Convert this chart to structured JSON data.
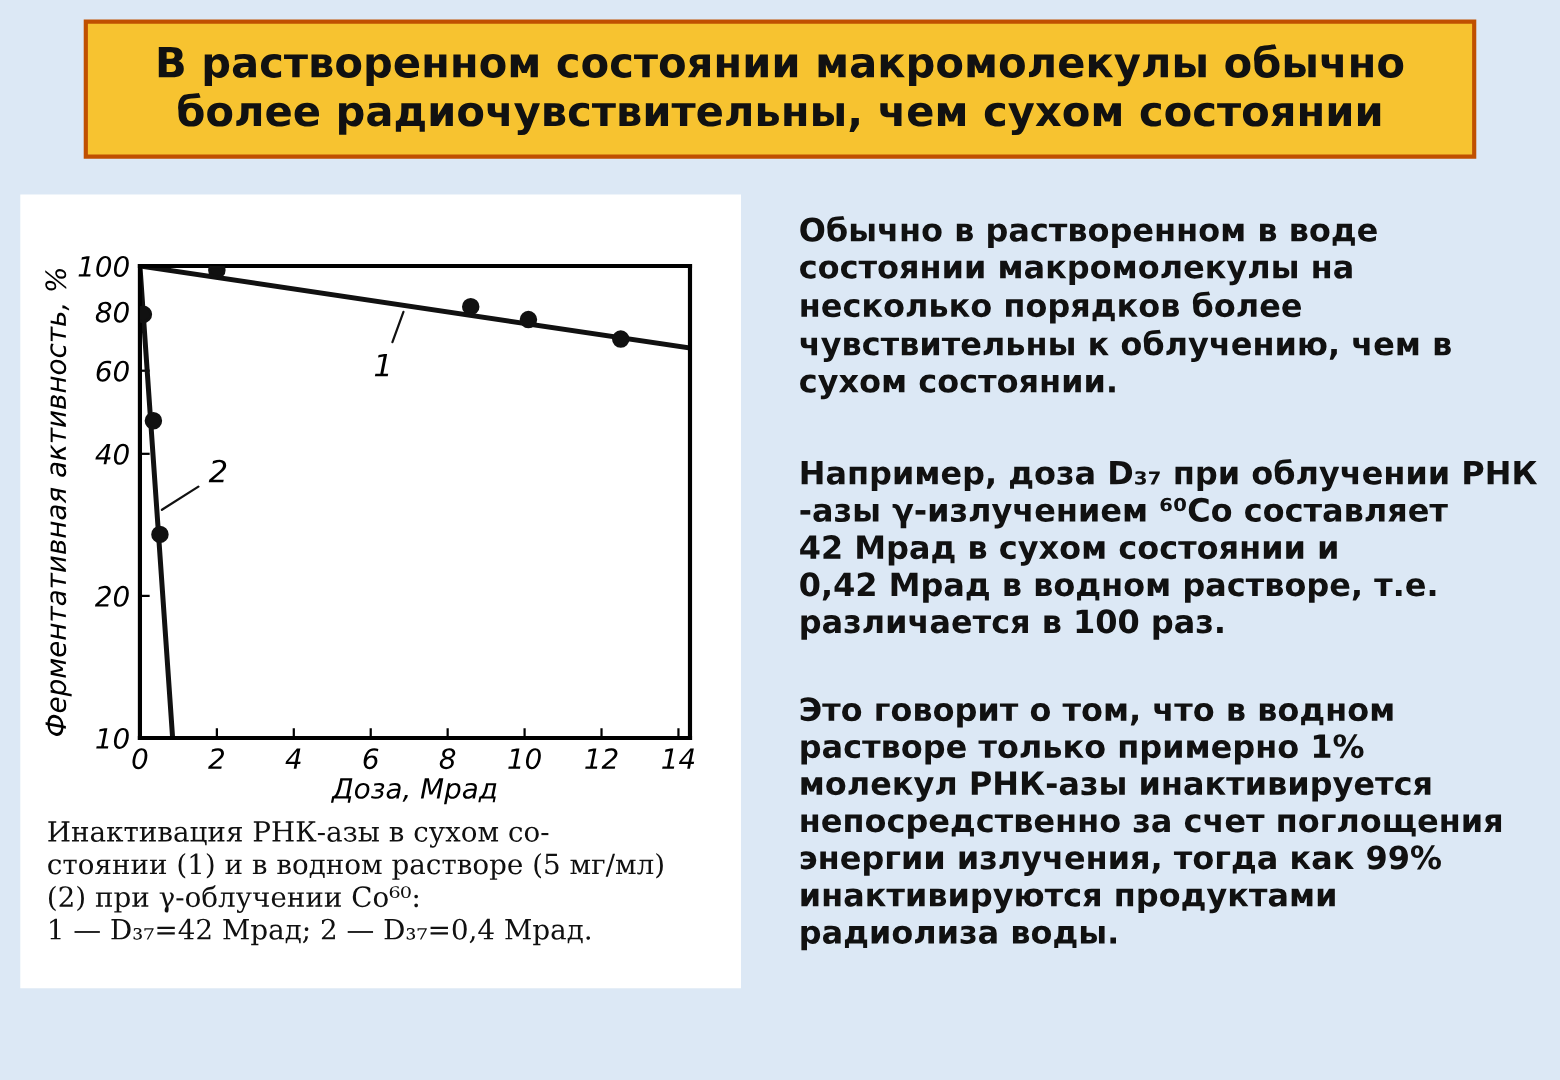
{
  "chart_data": {
    "type": "line",
    "title": "В растворенном состоянии макромолекулы обычно\nболее радиочувствительны, чем сухом состоянии",
    "xlabel": "Доза, Мрад",
    "ylabel": "Ферментативная активность, %",
    "log": "y",
    "xlim": [
      0,
      14.3
    ],
    "ylim": [
      10,
      100
    ],
    "xticks": [
      0,
      2,
      4,
      6,
      8,
      10,
      12,
      14
    ],
    "yticks": [
      10,
      20,
      40,
      60,
      80,
      100
    ],
    "grid": false,
    "series": [
      {
        "type": "scatter",
        "color": "#111111",
        "marker": "circle",
        "x": [
          2.0,
          8.6,
          10.1,
          12.5
        ],
        "values": [
          98,
          82,
          77,
          70
        ]
      },
      {
        "type": "scatter",
        "color": "#111111",
        "marker": "circle",
        "x": [
          0.09,
          0.35,
          0.52
        ],
        "values": [
          79,
          47,
          27
        ]
      },
      {
        "color": "#111111",
        "line_style": "solid",
        "x": [
          0,
          14.3
        ],
        "values": [
          100,
          67
        ]
      },
      {
        "color": "#111111",
        "line_style": "solid",
        "x": [
          0,
          0.85
        ],
        "values": [
          100,
          10
        ]
      }
    ],
    "annotations": [
      {
        "text": "1",
        "x": 6.9,
        "y": 82
      },
      {
        "text": "2",
        "x": 0.45,
        "y": 30
      },
      "Инактивация РНК-азы в сухом со-\nстоянии (1) и в водном растворе (5 мг/мл)\n(2) при γ-облучении Co⁶⁰:\n1 — D₃₇=42 Мрад; 2 — D₃₇=0,4 Мрад.",
      "Обычно в растворенном в воде\nсостоянии макромолекулы на\nнесколько порядков более\nчувствительны к облучению, чем в\nсухом состоянии.",
      "Например, доза D₃₇ при облучении РНК\n-азы γ-излучением ⁶⁰Co составляет\n42 Мрад в сухом состоянии и\n0,42 Мрад в водном растворе, т.е.\nразличается в 100 раз.",
      "Это говорит о том, что в водном\nрастворе только примерно 1%\nмолекул РНК-азы инактивируется\nнепосредственно за счет поглощения\nэнергии излучения, тогда как 99%\nинактивируются продуктами\nрадиолиза воды."
    ]
  }
}
